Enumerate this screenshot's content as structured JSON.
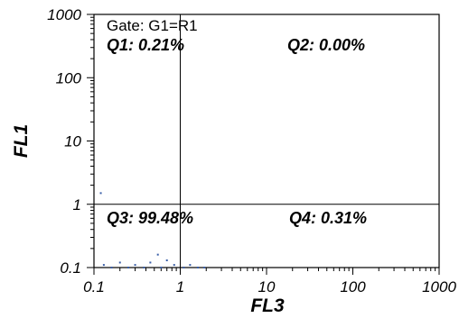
{
  "chart_data": {
    "type": "scatter",
    "xlabel": "FL3",
    "ylabel": "FL1",
    "x_scale": "log",
    "y_scale": "log",
    "xlim": [
      0.1,
      1000
    ],
    "ylim": [
      0.1,
      1000
    ],
    "x_ticks": [
      "0.1",
      "1",
      "10",
      "100",
      "1000"
    ],
    "y_ticks": [
      "0.1",
      "1",
      "10",
      "100",
      "1000"
    ],
    "gate_label": "Gate: G1=R1",
    "quadrant_divider": {
      "x": 1,
      "y": 1
    },
    "quadrants": [
      {
        "label": "Q1: 0.21%",
        "position": "top-left"
      },
      {
        "label": "Q2: 0.00%",
        "position": "top-right"
      },
      {
        "label": "Q3: 99.48%",
        "position": "bottom-left"
      },
      {
        "label": "Q4: 0.31%",
        "position": "bottom-right"
      }
    ],
    "point_color": "#3a5fa8",
    "points": [
      {
        "x": 0.12,
        "y": 1.5
      },
      {
        "x": 0.13,
        "y": 0.11
      },
      {
        "x": 0.16,
        "y": 0.1
      },
      {
        "x": 0.2,
        "y": 0.12
      },
      {
        "x": 0.25,
        "y": 0.1
      },
      {
        "x": 0.3,
        "y": 0.11
      },
      {
        "x": 0.38,
        "y": 0.1
      },
      {
        "x": 0.45,
        "y": 0.12
      },
      {
        "x": 0.55,
        "y": 0.16
      },
      {
        "x": 0.6,
        "y": 0.1
      },
      {
        "x": 0.7,
        "y": 0.13
      },
      {
        "x": 0.85,
        "y": 0.11
      },
      {
        "x": 1.1,
        "y": 0.1
      },
      {
        "x": 1.3,
        "y": 0.11
      },
      {
        "x": 1.6,
        "y": 0.1
      },
      {
        "x": 1.9,
        "y": 0.1
      }
    ]
  }
}
